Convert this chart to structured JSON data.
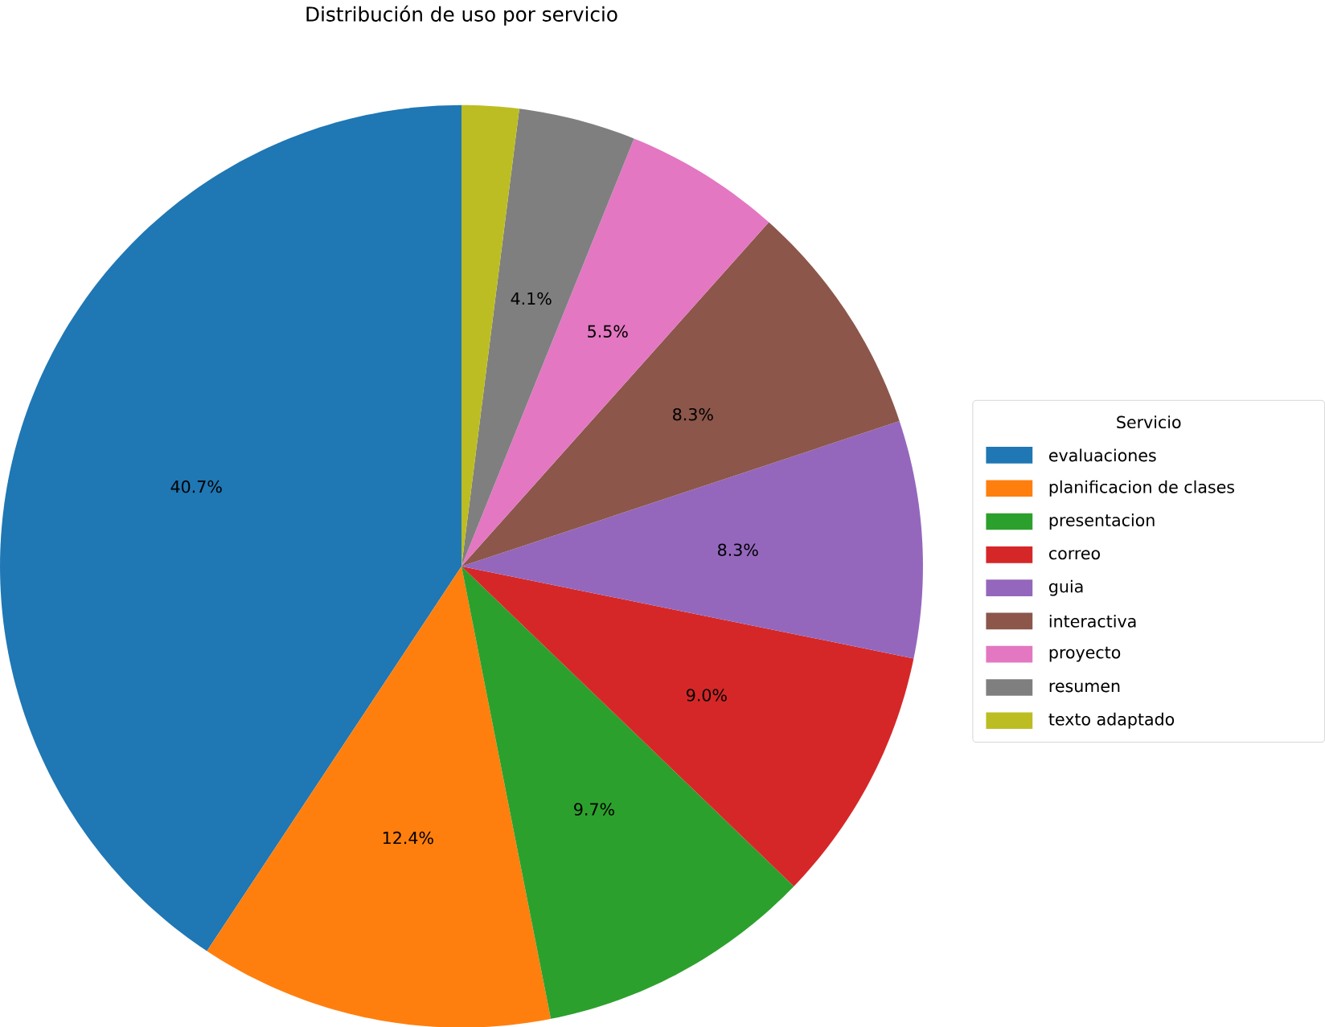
{
  "chart_data": {
    "type": "pie",
    "title": "Distribución de uso por servicio",
    "legend_title": "Servicio",
    "legend": "right",
    "categories": [
      "evaluaciones",
      "planificacion de clases",
      "presentacion",
      "correo",
      "guia",
      "interactiva",
      "proyecto",
      "resumen",
      "texto adaptado"
    ],
    "values": [
      40.7,
      12.4,
      9.7,
      9.0,
      8.3,
      8.3,
      5.5,
      4.1,
      2.0
    ],
    "colors": [
      "#1f77b4",
      "#ff7f0e",
      "#2ca02c",
      "#d62728",
      "#9467bd",
      "#8c564b",
      "#e377c2",
      "#7f7f7f",
      "#bcbd22"
    ],
    "value_labels": [
      "40.7%",
      "12.4%",
      "9.7%",
      "9.0%",
      "8.3%",
      "8.3%",
      "5.5%",
      "4.1%",
      null
    ]
  }
}
